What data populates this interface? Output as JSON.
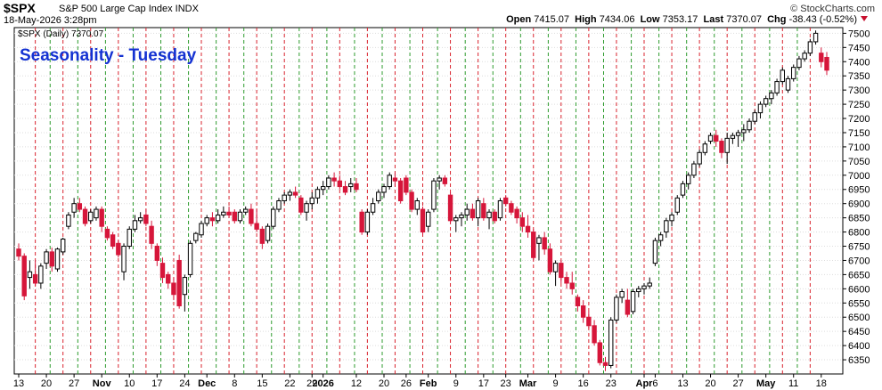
{
  "header": {
    "symbol": "$SPX",
    "description": "S&P 500 Large Cap Index  INDX",
    "credit": "© StockCharts.com",
    "timestamp": "18-May-2026 3:28pm",
    "open_label": "Open",
    "open_value": "7415.07",
    "high_label": "High",
    "high_value": "7434.06",
    "low_label": "Low",
    "low_value": "7353.17",
    "last_label": "Last",
    "last_value": "7370.07",
    "chg_label": "Chg",
    "chg_value": "-38.43 (-0.52%)"
  },
  "colors": {
    "up": "#ffffff",
    "down": "#d6163a",
    "down_prev_close": "#000000",
    "tuesday_line": "#d9232e",
    "week_line": "#2e9b2e",
    "title": "#1432d2",
    "grid": "#dddddd"
  },
  "chart_data": {
    "type": "candlestick",
    "title": "Seasonality - Tuesday",
    "legend_label": "$SPX (Daily) 7370.07",
    "ylim": [
      6300,
      7520
    ],
    "yticks": [
      6350,
      6400,
      6450,
      6500,
      6550,
      6600,
      6650,
      6700,
      6750,
      6800,
      6850,
      6900,
      6950,
      7000,
      7050,
      7100,
      7150,
      7200,
      7250,
      7300,
      7350,
      7400,
      7450,
      7500
    ],
    "x_tick_labels": [
      {
        "label": "13",
        "bar": 0
      },
      {
        "label": "20",
        "bar": 5
      },
      {
        "label": "27",
        "bar": 10
      },
      {
        "label": "Nov",
        "bar": 15,
        "bold": true
      },
      {
        "label": "10",
        "bar": 20
      },
      {
        "label": "17",
        "bar": 25
      },
      {
        "label": "24",
        "bar": 30
      },
      {
        "label": "Dec",
        "bar": 34,
        "bold": true
      },
      {
        "label": "8",
        "bar": 39
      },
      {
        "label": "15",
        "bar": 44
      },
      {
        "label": "22",
        "bar": 49
      },
      {
        "label": "29",
        "bar": 53
      },
      {
        "label": "2026",
        "bar": 55,
        "bold": true
      },
      {
        "label": "12",
        "bar": 61
      },
      {
        "label": "20",
        "bar": 66
      },
      {
        "label": "26",
        "bar": 70
      },
      {
        "label": "Feb",
        "bar": 74,
        "bold": true
      },
      {
        "label": "9",
        "bar": 79
      },
      {
        "label": "17",
        "bar": 84
      },
      {
        "label": "23",
        "bar": 88
      },
      {
        "label": "Mar",
        "bar": 92,
        "bold": true
      },
      {
        "label": "9",
        "bar": 97
      },
      {
        "label": "16",
        "bar": 102
      },
      {
        "label": "23",
        "bar": 107
      },
      {
        "label": "Apr",
        "bar": 113,
        "bold": true
      },
      {
        "label": "6",
        "bar": 115
      },
      {
        "label": "13",
        "bar": 120
      },
      {
        "label": "20",
        "bar": 125
      },
      {
        "label": "27",
        "bar": 130
      },
      {
        "label": "May",
        "bar": 135,
        "bold": true
      },
      {
        "label": "11",
        "bar": 140
      },
      {
        "label": "18",
        "bar": 145
      }
    ],
    "candles": [
      [
        6740,
        6760,
        6700,
        6715
      ],
      [
        6715,
        6725,
        6560,
        6575
      ],
      [
        6640,
        6700,
        6600,
        6660
      ],
      [
        6650,
        6700,
        6610,
        6620
      ],
      [
        6620,
        6690,
        6600,
        6680
      ],
      [
        6690,
        6740,
        6670,
        6730
      ],
      [
        6730,
        6745,
        6660,
        6680
      ],
      [
        6670,
        6745,
        6660,
        6740
      ],
      [
        6730,
        6780,
        6720,
        6775
      ],
      [
        6820,
        6870,
        6810,
        6860
      ],
      [
        6870,
        6920,
        6850,
        6900
      ],
      [
        6900,
        6920,
        6870,
        6880
      ],
      [
        6880,
        6890,
        6820,
        6830
      ],
      [
        6840,
        6880,
        6830,
        6870
      ],
      [
        6850,
        6890,
        6840,
        6880
      ],
      [
        6880,
        6890,
        6800,
        6820
      ],
      [
        6810,
        6820,
        6770,
        6780
      ],
      [
        6790,
        6800,
        6740,
        6750
      ],
      [
        6760,
        6770,
        6710,
        6720
      ],
      [
        6660,
        6760,
        6630,
        6750
      ],
      [
        6750,
        6820,
        6740,
        6810
      ],
      [
        6810,
        6860,
        6800,
        6840
      ],
      [
        6840,
        6870,
        6830,
        6850
      ],
      [
        6860,
        6880,
        6820,
        6830
      ],
      [
        6820,
        6840,
        6740,
        6760
      ],
      [
        6750,
        6760,
        6680,
        6700
      ],
      [
        6690,
        6710,
        6620,
        6640
      ],
      [
        6650,
        6660,
        6600,
        6620
      ],
      [
        6620,
        6640,
        6560,
        6580
      ],
      [
        6700,
        6720,
        6530,
        6540
      ],
      [
        6580,
        6650,
        6520,
        6640
      ],
      [
        6650,
        6770,
        6640,
        6760
      ],
      [
        6770,
        6800,
        6760,
        6795
      ],
      [
        6790,
        6840,
        6780,
        6830
      ],
      [
        6830,
        6860,
        6820,
        6850
      ],
      [
        6850,
        6870,
        6820,
        6840
      ],
      [
        6840,
        6880,
        6830,
        6860
      ],
      [
        6860,
        6890,
        6850,
        6870
      ],
      [
        6870,
        6890,
        6850,
        6860
      ],
      [
        6870,
        6880,
        6830,
        6840
      ],
      [
        6840,
        6880,
        6830,
        6870
      ],
      [
        6870,
        6890,
        6860,
        6880
      ],
      [
        6880,
        6900,
        6820,
        6830
      ],
      [
        6830,
        6880,
        6800,
        6810
      ],
      [
        6810,
        6820,
        6740,
        6760
      ],
      [
        6770,
        6830,
        6760,
        6820
      ],
      [
        6820,
        6890,
        6810,
        6880
      ],
      [
        6880,
        6920,
        6870,
        6910
      ],
      [
        6910,
        6940,
        6900,
        6930
      ],
      [
        6930,
        6950,
        6910,
        6940
      ],
      [
        6940,
        6960,
        6920,
        6930
      ],
      [
        6920,
        6930,
        6860,
        6870
      ],
      [
        6870,
        6910,
        6840,
        6900
      ],
      [
        6900,
        6940,
        6880,
        6920
      ],
      [
        6920,
        6960,
        6900,
        6950
      ],
      [
        6950,
        6980,
        6930,
        6960
      ],
      [
        6960,
        7000,
        6950,
        6990
      ],
      [
        6990,
        7010,
        6960,
        6980
      ],
      [
        6980,
        7000,
        6950,
        6960
      ],
      [
        6960,
        6980,
        6930,
        6940
      ],
      [
        6960,
        6990,
        6940,
        6970
      ],
      [
        6970,
        6990,
        6940,
        6950
      ],
      [
        6870,
        6880,
        6790,
        6800
      ],
      [
        6800,
        6880,
        6790,
        6870
      ],
      [
        6870,
        6920,
        6860,
        6900
      ],
      [
        6910,
        6950,
        6900,
        6940
      ],
      [
        6940,
        6970,
        6920,
        6960
      ],
      [
        6960,
        7010,
        6950,
        7000
      ],
      [
        6990,
        7010,
        6960,
        6980
      ],
      [
        6980,
        6990,
        6900,
        6910
      ],
      [
        6990,
        7000,
        6930,
        6940
      ],
      [
        6940,
        6950,
        6870,
        6880
      ],
      [
        6880,
        6920,
        6860,
        6910
      ],
      [
        6880,
        6890,
        6790,
        6800
      ],
      [
        6820,
        6880,
        6800,
        6870
      ],
      [
        6880,
        6990,
        6870,
        6980
      ],
      [
        6980,
        7000,
        6950,
        6990
      ],
      [
        6990,
        7000,
        6960,
        6970
      ],
      [
        6930,
        6940,
        6830,
        6840
      ],
      [
        6840,
        6860,
        6800,
        6850
      ],
      [
        6850,
        6870,
        6820,
        6860
      ],
      [
        6860,
        6900,
        6840,
        6880
      ],
      [
        6880,
        6900,
        6840,
        6850
      ],
      [
        6850,
        6920,
        6820,
        6910
      ],
      [
        6900,
        6920,
        6840,
        6850
      ],
      [
        6850,
        6880,
        6810,
        6870
      ],
      [
        6870,
        6880,
        6830,
        6840
      ],
      [
        6850,
        6920,
        6840,
        6910
      ],
      [
        6920,
        6930,
        6890,
        6900
      ],
      [
        6900,
        6910,
        6860,
        6870
      ],
      [
        6880,
        6890,
        6830,
        6850
      ],
      [
        6850,
        6870,
        6800,
        6820
      ],
      [
        6820,
        6860,
        6780,
        6800
      ],
      [
        6800,
        6810,
        6700,
        6710
      ],
      [
        6760,
        6790,
        6700,
        6780
      ],
      [
        6780,
        6800,
        6720,
        6740
      ],
      [
        6740,
        6760,
        6650,
        6660
      ],
      [
        6660,
        6700,
        6610,
        6690
      ],
      [
        6690,
        6700,
        6620,
        6640
      ],
      [
        6640,
        6660,
        6600,
        6620
      ],
      [
        6620,
        6660,
        6580,
        6600
      ],
      [
        6570,
        6580,
        6520,
        6540
      ],
      [
        6540,
        6560,
        6480,
        6500
      ],
      [
        6500,
        6520,
        6460,
        6470
      ],
      [
        6470,
        6490,
        6400,
        6410
      ],
      [
        6410,
        6420,
        6330,
        6340
      ],
      [
        6340,
        6360,
        6310,
        6330
      ],
      [
        6330,
        6500,
        6320,
        6490
      ],
      [
        6490,
        6580,
        6480,
        6570
      ],
      [
        6570,
        6600,
        6550,
        6590
      ],
      [
        6560,
        6600,
        6500,
        6510
      ],
      [
        6520,
        6600,
        6510,
        6590
      ],
      [
        6590,
        6610,
        6570,
        6600
      ],
      [
        6600,
        6620,
        6580,
        6610
      ],
      [
        6610,
        6640,
        6600,
        6620
      ],
      [
        6690,
        6780,
        6680,
        6770
      ],
      [
        6770,
        6800,
        6750,
        6790
      ],
      [
        6800,
        6850,
        6780,
        6840
      ],
      [
        6840,
        6870,
        6820,
        6860
      ],
      [
        6870,
        6930,
        6860,
        6920
      ],
      [
        6930,
        6980,
        6920,
        6970
      ],
      [
        6970,
        7010,
        6950,
        7000
      ],
      [
        7000,
        7050,
        6990,
        7040
      ],
      [
        7040,
        7090,
        7030,
        7080
      ],
      [
        7080,
        7120,
        7070,
        7110
      ],
      [
        7120,
        7150,
        7110,
        7140
      ],
      [
        7140,
        7160,
        7100,
        7120
      ],
      [
        7120,
        7130,
        7060,
        7080
      ],
      [
        7080,
        7150,
        7040,
        7130
      ],
      [
        7130,
        7150,
        7110,
        7140
      ],
      [
        7140,
        7160,
        7100,
        7150
      ],
      [
        7150,
        7180,
        7120,
        7160
      ],
      [
        7160,
        7200,
        7150,
        7190
      ],
      [
        7190,
        7230,
        7180,
        7220
      ],
      [
        7220,
        7260,
        7200,
        7250
      ],
      [
        7250,
        7280,
        7240,
        7270
      ],
      [
        7270,
        7300,
        7250,
        7290
      ],
      [
        7290,
        7340,
        7280,
        7330
      ],
      [
        7330,
        7380,
        7320,
        7370
      ],
      [
        7300,
        7350,
        7290,
        7340
      ],
      [
        7340,
        7390,
        7330,
        7380
      ],
      [
        7380,
        7420,
        7370,
        7410
      ],
      [
        7410,
        7440,
        7400,
        7430
      ],
      [
        7430,
        7480,
        7420,
        7470
      ],
      [
        7470,
        7510,
        7460,
        7500
      ],
      [
        7430,
        7450,
        7380,
        7400
      ],
      [
        7415,
        7434,
        7353,
        7370
      ]
    ],
    "tuesday_bars": [
      3,
      8,
      13,
      18,
      23,
      28,
      33,
      38,
      43,
      48,
      53,
      58,
      63,
      68,
      73,
      78,
      83,
      88,
      93,
      98,
      103,
      108,
      113,
      118,
      123,
      128,
      133,
      138,
      143
    ],
    "week_lines": [
      6,
      11,
      16,
      21,
      26,
      31,
      36,
      41,
      46,
      51,
      56,
      61,
      66,
      71,
      76,
      81,
      86,
      91,
      96,
      101,
      106,
      111,
      116,
      121,
      126,
      131,
      136,
      141
    ]
  }
}
